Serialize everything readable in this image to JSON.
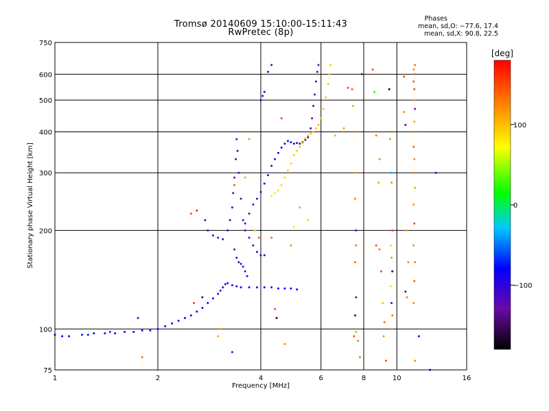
{
  "chart_data": {
    "type": "scatter",
    "title": "Tromsø 20140609 15:10:00-15:11:43",
    "subtitle": "RwPretec (8p)",
    "xlabel": "Frequency [MHz]",
    "ylabel": "Stationary phase Virtual Height [km]",
    "x_scale": "log",
    "y_scale": "log",
    "xlim": [
      1,
      16
    ],
    "ylim": [
      75,
      750
    ],
    "x_ticks": [
      1,
      2,
      4,
      6,
      8,
      10,
      16
    ],
    "x_tick_labels": [
      "1",
      "2",
      "4",
      "6",
      "8",
      "10",
      "16"
    ],
    "y_ticks": [
      75,
      100,
      200,
      300,
      400,
      500,
      600,
      750
    ],
    "y_tick_labels": [
      "75",
      "100",
      "200",
      "300",
      "400",
      "500",
      "600",
      "750"
    ],
    "grid": true,
    "colorbar": {
      "label": "[deg]",
      "range": [
        -180,
        180
      ],
      "ticks": [
        100,
        0,
        -100
      ],
      "tick_labels": [
        "100",
        "0",
        "−100"
      ],
      "colors": [
        "#000000",
        "#6a0aa5",
        "#0000ff",
        "#00c8ff",
        "#00ff00",
        "#ffff00",
        "#ff8000",
        "#ff0000"
      ]
    },
    "phases": {
      "title": "Phases",
      "o_line": "mean, sd,O: −77.6, 17.4",
      "x_line": "mean, sd,X:  90.8, 22.5"
    },
    "series": [
      {
        "points": [
          [
            1.0,
            96,
            -80
          ],
          [
            1.05,
            95,
            -85
          ],
          [
            1.1,
            95,
            -80
          ],
          [
            1.2,
            96,
            -75
          ],
          [
            1.3,
            97,
            -80
          ],
          [
            1.4,
            97,
            -90
          ],
          [
            1.5,
            97,
            -80
          ],
          [
            1.6,
            98,
            -75
          ],
          [
            1.7,
            98,
            -80
          ],
          [
            1.8,
            99,
            -85
          ],
          [
            1.9,
            99,
            -90
          ],
          [
            2.0,
            100,
            -95
          ],
          [
            2.1,
            102,
            -85
          ],
          [
            2.2,
            104,
            -80
          ],
          [
            2.3,
            106,
            -85
          ],
          [
            2.4,
            108,
            -80
          ],
          [
            2.5,
            110,
            -75
          ],
          [
            2.6,
            113,
            -80
          ],
          [
            2.7,
            116,
            -85
          ],
          [
            2.8,
            120,
            -90
          ],
          [
            2.9,
            124,
            -100
          ],
          [
            3.0,
            128,
            -105
          ],
          [
            3.05,
            131,
            -110
          ],
          [
            3.1,
            134,
            -105
          ],
          [
            3.15,
            137,
            -100
          ],
          [
            3.2,
            138,
            -95
          ],
          [
            3.3,
            136,
            -90
          ],
          [
            3.4,
            135,
            -85
          ],
          [
            3.5,
            134,
            -80
          ],
          [
            3.7,
            134,
            -80
          ],
          [
            3.9,
            134,
            -85
          ],
          [
            4.1,
            134,
            -80
          ],
          [
            4.3,
            134,
            -85
          ],
          [
            4.5,
            133,
            -80
          ],
          [
            4.7,
            133,
            -80
          ],
          [
            4.9,
            133,
            -85
          ],
          [
            5.1,
            132,
            -80
          ]
        ]
      },
      {
        "points": [
          [
            2.75,
            215,
            -105
          ],
          [
            2.8,
            200,
            -100
          ],
          [
            2.9,
            193,
            -105
          ],
          [
            3.0,
            190,
            -110
          ],
          [
            3.1,
            188,
            -105
          ],
          [
            3.2,
            200,
            -110
          ],
          [
            3.25,
            215,
            -115
          ],
          [
            3.3,
            235,
            -115
          ],
          [
            3.32,
            260,
            -120
          ],
          [
            3.35,
            290,
            -118
          ],
          [
            3.38,
            330,
            -115
          ],
          [
            3.4,
            380,
            -120
          ],
          [
            3.42,
            350,
            -118
          ],
          [
            3.45,
            300,
            -115
          ],
          [
            3.5,
            250,
            -120
          ],
          [
            3.55,
            215,
            -118
          ],
          [
            3.6,
            200,
            -115
          ],
          [
            3.7,
            190,
            -110
          ],
          [
            3.8,
            180,
            -108
          ],
          [
            3.9,
            172,
            -105
          ],
          [
            4.0,
            168,
            -105
          ],
          [
            4.1,
            168,
            -100
          ],
          [
            3.35,
            175,
            -115
          ],
          [
            3.4,
            165,
            -110
          ],
          [
            3.45,
            160,
            -112
          ],
          [
            3.5,
            158,
            -108
          ],
          [
            3.55,
            155,
            -110
          ],
          [
            3.6,
            150,
            -112
          ],
          [
            3.65,
            145,
            -110
          ]
        ]
      },
      {
        "points": [
          [
            3.6,
            210,
            -110
          ],
          [
            3.7,
            225,
            -112
          ],
          [
            3.8,
            240,
            -110
          ],
          [
            3.9,
            250,
            -108
          ],
          [
            4.0,
            262,
            -105
          ],
          [
            4.1,
            278,
            -100
          ],
          [
            4.2,
            295,
            -98
          ],
          [
            4.3,
            315,
            -95
          ],
          [
            4.4,
            330,
            -95
          ],
          [
            4.5,
            345,
            -90
          ],
          [
            4.6,
            358,
            -90
          ],
          [
            4.7,
            368,
            -92
          ],
          [
            4.8,
            375,
            -95
          ],
          [
            4.9,
            372,
            -95
          ],
          [
            5.0,
            368,
            -98
          ],
          [
            5.1,
            370,
            -100
          ],
          [
            5.2,
            368,
            -98
          ],
          [
            5.3,
            372,
            -100
          ],
          [
            5.4,
            378,
            -105
          ],
          [
            5.5,
            385,
            -108
          ],
          [
            5.6,
            410,
            -110
          ],
          [
            5.65,
            440,
            -112
          ],
          [
            5.7,
            480,
            -115
          ],
          [
            5.75,
            520,
            -115
          ],
          [
            5.8,
            570,
            -118
          ],
          [
            5.85,
            610,
            -120
          ],
          [
            5.9,
            640,
            -118
          ]
        ]
      },
      {
        "points": [
          [
            4.0,
            500,
            -110
          ],
          [
            4.05,
            515,
            -105
          ],
          [
            4.1,
            530,
            -100
          ],
          [
            4.2,
            610,
            -95
          ],
          [
            4.3,
            640,
            -110
          ]
        ]
      },
      {
        "points": [
          [
            4.3,
            255,
            75
          ],
          [
            4.4,
            260,
            80
          ],
          [
            4.5,
            265,
            80
          ],
          [
            4.6,
            275,
            85
          ],
          [
            4.7,
            290,
            85
          ],
          [
            4.8,
            305,
            90
          ],
          [
            4.9,
            320,
            90
          ],
          [
            5.0,
            340,
            92
          ],
          [
            5.1,
            350,
            95
          ],
          [
            5.2,
            360,
            95
          ],
          [
            5.3,
            370,
            98
          ],
          [
            5.4,
            382,
            100
          ],
          [
            5.5,
            390,
            100
          ],
          [
            5.6,
            395,
            98
          ],
          [
            5.7,
            400,
            100
          ],
          [
            5.8,
            410,
            100
          ],
          [
            5.9,
            420,
            102
          ],
          [
            6.0,
            440,
            100
          ],
          [
            6.1,
            470,
            98
          ],
          [
            6.2,
            510,
            96
          ],
          [
            6.3,
            560,
            95
          ],
          [
            6.35,
            600,
            95
          ],
          [
            6.4,
            640,
            92
          ]
        ]
      },
      {
        "points": [
          [
            1.25,
            96,
            -75
          ],
          [
            1.45,
            98,
            -70
          ],
          [
            1.75,
            108,
            -110
          ],
          [
            1.8,
            82,
            130
          ],
          [
            2.0,
            75,
            110
          ],
          [
            2.5,
            225,
            150
          ],
          [
            2.6,
            230,
            170
          ],
          [
            2.55,
            120,
            160
          ],
          [
            2.7,
            125,
            -160
          ],
          [
            3.0,
            95,
            110
          ],
          [
            3.05,
            100,
            120
          ],
          [
            3.3,
            85,
            -110
          ],
          [
            3.35,
            275,
            140
          ],
          [
            3.6,
            290,
            110
          ],
          [
            3.7,
            380,
            120
          ],
          [
            3.85,
            200,
            90
          ],
          [
            3.95,
            190,
            140
          ],
          [
            4.3,
            190,
            130
          ],
          [
            4.4,
            115,
            150
          ],
          [
            4.45,
            108,
            -170
          ],
          [
            4.7,
            90,
            120
          ],
          [
            4.6,
            440,
            150
          ],
          [
            4.9,
            180,
            120
          ],
          [
            5.0,
            205,
            60
          ],
          [
            5.5,
            215,
            90
          ],
          [
            5.2,
            235,
            110
          ],
          [
            7.2,
            545,
            150
          ],
          [
            7.4,
            540,
            140
          ],
          [
            7.45,
            480,
            110
          ],
          [
            7.5,
            400,
            130
          ],
          [
            7.6,
            300,
            120
          ],
          [
            7.55,
            250,
            130
          ],
          [
            7.6,
            200,
            -70
          ],
          [
            7.6,
            180,
            130
          ],
          [
            7.55,
            160,
            140
          ],
          [
            7.6,
            125,
            -120
          ],
          [
            7.55,
            110,
            -150
          ],
          [
            7.6,
            98,
            110
          ],
          [
            7.5,
            95,
            150
          ],
          [
            7.7,
            92,
            130
          ],
          [
            7.8,
            82,
            130
          ],
          [
            7.9,
            600,
            -120
          ],
          [
            8.5,
            620,
            150
          ],
          [
            8.6,
            530,
            20
          ],
          [
            8.7,
            390,
            130
          ],
          [
            8.9,
            330,
            120
          ],
          [
            8.85,
            280,
            110
          ],
          [
            8.7,
            180,
            150
          ],
          [
            8.9,
            175,
            130
          ],
          [
            9.0,
            150,
            150
          ],
          [
            9.1,
            120,
            100
          ],
          [
            9.2,
            105,
            130
          ],
          [
            9.15,
            95,
            120
          ],
          [
            9.3,
            80,
            150
          ],
          [
            9.5,
            540,
            -170
          ],
          [
            9.55,
            380,
            120
          ],
          [
            9.6,
            300,
            -40
          ],
          [
            9.65,
            280,
            120
          ],
          [
            9.7,
            200,
            150
          ],
          [
            9.6,
            180,
            80
          ],
          [
            9.65,
            165,
            120
          ],
          [
            9.7,
            150,
            -160
          ],
          [
            9.6,
            135,
            60
          ],
          [
            9.65,
            120,
            -110
          ],
          [
            9.7,
            110,
            130
          ],
          [
            9.65,
            100,
            120
          ],
          [
            10.5,
            590,
            150
          ],
          [
            10.5,
            460,
            120
          ],
          [
            10.6,
            420,
            -100
          ],
          [
            10.7,
            200,
            110
          ],
          [
            10.8,
            160,
            120
          ],
          [
            10.6,
            130,
            -100
          ],
          [
            10.7,
            125,
            130
          ],
          [
            11.2,
            620,
            120
          ],
          [
            11.3,
            600,
            140
          ],
          [
            11.2,
            570,
            140
          ],
          [
            11.25,
            540,
            150
          ],
          [
            11.2,
            500,
            120
          ],
          [
            11.3,
            470,
            -130
          ],
          [
            11.25,
            430,
            110
          ],
          [
            11.3,
            400,
            130
          ],
          [
            11.2,
            360,
            140
          ],
          [
            11.25,
            330,
            120
          ],
          [
            11.2,
            300,
            130
          ],
          [
            11.3,
            270,
            110
          ],
          [
            11.2,
            240,
            120
          ],
          [
            11.25,
            210,
            150
          ],
          [
            11.2,
            180,
            120
          ],
          [
            11.3,
            160,
            130
          ],
          [
            11.25,
            140,
            140
          ],
          [
            11.2,
            120,
            120
          ],
          [
            11.3,
            80,
            120
          ],
          [
            11.6,
            95,
            -90
          ],
          [
            11.3,
            640,
            130
          ],
          [
            13.0,
            300,
            -90
          ],
          [
            12.5,
            75,
            -80
          ],
          [
            7.0,
            410,
            110
          ],
          [
            6.6,
            390,
            100
          ]
        ]
      }
    ]
  }
}
